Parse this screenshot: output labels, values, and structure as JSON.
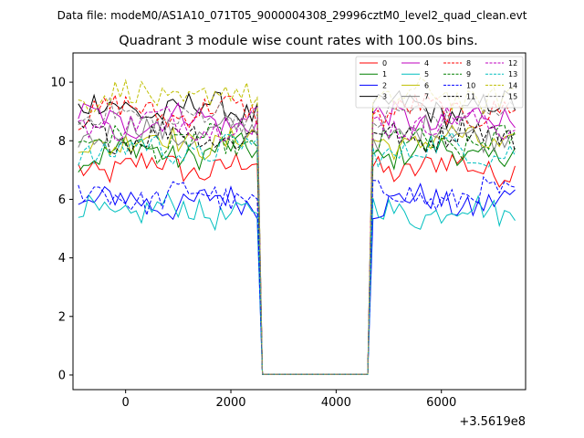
{
  "chart_data": {
    "type": "line",
    "suptitle": "Data file: modeM0/AS1A10_071T05_9000004308_29996cztM0_level2_quad_clean.evt",
    "title": "Quadrant 3 module wise count rates with 100.0s bins.",
    "xlabel": "",
    "ylabel": "",
    "offset_text": "+3.5619e8",
    "xlim": [
      -1000,
      7600
    ],
    "ylim": [
      -0.5,
      11
    ],
    "xticks": [
      0,
      2000,
      4000,
      6000
    ],
    "yticks": [
      0,
      2,
      4,
      6,
      8,
      10
    ],
    "legend_position": "top-right",
    "x": [
      -900,
      -800,
      -700,
      -600,
      -500,
      -400,
      -300,
      -200,
      -100,
      0,
      100,
      200,
      300,
      400,
      500,
      600,
      700,
      800,
      900,
      1000,
      1100,
      1200,
      1300,
      1400,
      1500,
      1600,
      1700,
      1800,
      1900,
      2000,
      2100,
      2200,
      2300,
      2400,
      2500,
      2600,
      2700,
      2800,
      2900,
      3000,
      3100,
      3200,
      3300,
      3400,
      3500,
      3600,
      3700,
      3800,
      3900,
      4000,
      4100,
      4200,
      4300,
      4400,
      4500,
      4600,
      4700,
      4800,
      4900,
      5000,
      5100,
      5200,
      5300,
      5400,
      5500,
      5600,
      5700,
      5800,
      5900,
      6000,
      6100,
      6200,
      6300,
      6400,
      6500,
      6600,
      6700,
      6800,
      6900,
      7000,
      7100,
      7200,
      7300,
      7400
    ],
    "series": [
      {
        "name": "0",
        "color": "#ff0000",
        "dash": "solid",
        "level": 7.1
      },
      {
        "name": "1",
        "color": "#008000",
        "dash": "solid",
        "level": 7.6
      },
      {
        "name": "2",
        "color": "#0000ff",
        "dash": "solid",
        "level": 5.9
      },
      {
        "name": "3",
        "color": "#000000",
        "dash": "solid",
        "level": 9.1
      },
      {
        "name": "4",
        "color": "#bf00bf",
        "dash": "solid",
        "level": 8.7
      },
      {
        "name": "5",
        "color": "#00bfbf",
        "dash": "solid",
        "level": 5.6
      },
      {
        "name": "6",
        "color": "#bfbf00",
        "dash": "solid",
        "level": 8.0
      },
      {
        "name": "7",
        "color": "#808080",
        "dash": "solid",
        "level": 8.3
      },
      {
        "name": "8",
        "color": "#ff0000",
        "dash": "dashed",
        "level": 9.0
      },
      {
        "name": "9",
        "color": "#008000",
        "dash": "dashed",
        "level": 7.9
      },
      {
        "name": "10",
        "color": "#0000ff",
        "dash": "dashed",
        "level": 6.1
      },
      {
        "name": "11",
        "color": "#000000",
        "dash": "dashed",
        "level": 8.2
      },
      {
        "name": "12",
        "color": "#bf00bf",
        "dash": "dashed",
        "level": 8.6
      },
      {
        "name": "13",
        "color": "#00bfbf",
        "dash": "dashed",
        "level": 7.7
      },
      {
        "name": "14",
        "color": "#bfbf00",
        "dash": "dashed",
        "level": 9.5
      },
      {
        "name": "15",
        "color": "#808080",
        "dash": "dashed",
        "level": 8.8
      }
    ],
    "gap_range": [
      2600,
      4600
    ],
    "gap_value": 0.02
  }
}
